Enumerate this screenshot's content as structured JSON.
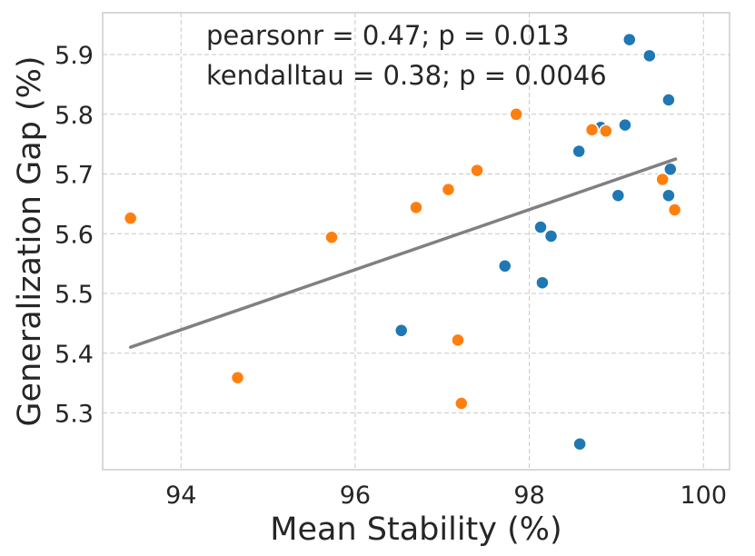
{
  "chart_data": {
    "type": "scatter",
    "xlabel": "Mean Stability (%)",
    "ylabel": "Generalization Gap (%)",
    "xlim": [
      93.1,
      100.3
    ],
    "ylim": [
      5.205,
      5.97
    ],
    "x_ticks": [
      94,
      96,
      98,
      100
    ],
    "y_ticks": [
      5.3,
      5.4,
      5.5,
      5.6,
      5.7,
      5.8,
      5.9
    ],
    "grid": true,
    "annotations": [
      "pearsonr = 0.47; p = 0.013",
      "kendalltau = 0.38; p = 0.0046"
    ],
    "series": [
      {
        "name": "blue",
        "color": "#1f77b4",
        "points": [
          {
            "x": 99.15,
            "y": 5.925
          },
          {
            "x": 99.38,
            "y": 5.898
          },
          {
            "x": 99.6,
            "y": 5.824
          },
          {
            "x": 98.82,
            "y": 5.778
          },
          {
            "x": 99.1,
            "y": 5.782
          },
          {
            "x": 98.57,
            "y": 5.738
          },
          {
            "x": 99.62,
            "y": 5.708
          },
          {
            "x": 99.02,
            "y": 5.664
          },
          {
            "x": 99.6,
            "y": 5.664
          },
          {
            "x": 98.13,
            "y": 5.611
          },
          {
            "x": 98.25,
            "y": 5.596
          },
          {
            "x": 97.72,
            "y": 5.546
          },
          {
            "x": 98.15,
            "y": 5.518
          },
          {
            "x": 96.53,
            "y": 5.438
          },
          {
            "x": 98.58,
            "y": 5.248
          }
        ]
      },
      {
        "name": "orange",
        "color": "#ff7f0e",
        "points": [
          {
            "x": 97.85,
            "y": 5.8
          },
          {
            "x": 98.72,
            "y": 5.774
          },
          {
            "x": 98.88,
            "y": 5.772
          },
          {
            "x": 97.4,
            "y": 5.706
          },
          {
            "x": 97.07,
            "y": 5.674
          },
          {
            "x": 99.53,
            "y": 5.691
          },
          {
            "x": 96.7,
            "y": 5.644
          },
          {
            "x": 99.67,
            "y": 5.64
          },
          {
            "x": 93.42,
            "y": 5.626
          },
          {
            "x": 95.73,
            "y": 5.594
          },
          {
            "x": 97.18,
            "y": 5.422
          },
          {
            "x": 94.65,
            "y": 5.359
          },
          {
            "x": 97.22,
            "y": 5.316
          }
        ]
      }
    ],
    "regression_line": {
      "color": "#808080",
      "x": [
        93.42,
        99.68
      ],
      "y": [
        5.41,
        5.725
      ]
    }
  }
}
